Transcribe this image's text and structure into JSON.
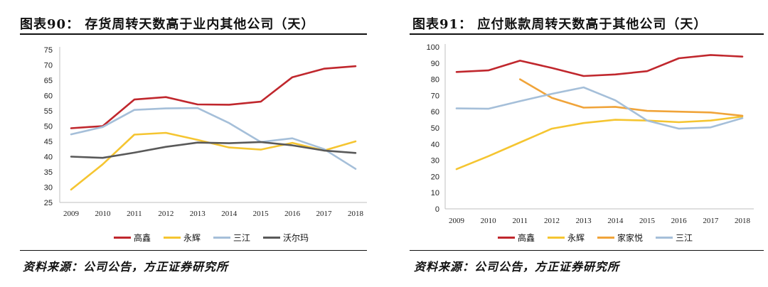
{
  "chart_data": [
    {
      "type": "line",
      "title": "图表90：  存货周转天数高于业内其他公司（天）",
      "categories": [
        "2009",
        "2010",
        "2011",
        "2012",
        "2013",
        "2014",
        "2015",
        "2016",
        "2017",
        "2018"
      ],
      "ylim": [
        25,
        75
      ],
      "yticks": [
        25,
        30,
        35,
        40,
        45,
        50,
        55,
        60,
        65,
        70,
        75
      ],
      "series": [
        {
          "name": "高鑫",
          "color": "#c0272d",
          "values": [
            49.3,
            50.0,
            58.7,
            59.5,
            57.1,
            57.0,
            58.0,
            66.0,
            68.8,
            69.6
          ]
        },
        {
          "name": "永辉",
          "color": "#f5c531",
          "values": [
            29.2,
            37.5,
            47.2,
            47.8,
            45.5,
            43.0,
            42.3,
            44.5,
            42.0,
            45.0
          ]
        },
        {
          "name": "三江",
          "color": "#a5bfd9",
          "values": [
            47.3,
            49.7,
            55.3,
            55.8,
            55.9,
            51.0,
            44.8,
            46.0,
            42.5,
            36.0
          ]
        },
        {
          "name": "沃尔玛",
          "color": "#595959",
          "values": [
            40.0,
            39.6,
            41.3,
            43.2,
            44.6,
            44.4,
            44.8,
            43.7,
            42.0,
            41.2
          ]
        }
      ],
      "source": "资料来源：公司公告，方正证券研究所"
    },
    {
      "type": "line",
      "title": "图表91：  应付账款周转天数高于其他公司（天）",
      "categories": [
        "2009",
        "2010",
        "2011",
        "2012",
        "2013",
        "2014",
        "2015",
        "2016",
        "2017",
        "2018"
      ],
      "ylim": [
        0,
        100
      ],
      "yticks": [
        0,
        10,
        20,
        30,
        40,
        50,
        60,
        70,
        80,
        90,
        100
      ],
      "series": [
        {
          "name": "高鑫",
          "color": "#c0272d",
          "values": [
            84.5,
            85.5,
            91.5,
            87.0,
            82.0,
            83.0,
            85.0,
            93.0,
            95.0,
            94.0
          ]
        },
        {
          "name": "永辉",
          "color": "#f5c531",
          "values": [
            24.5,
            32.5,
            41.0,
            49.5,
            53.0,
            55.0,
            54.5,
            53.5,
            54.5,
            57.0
          ]
        },
        {
          "name": "家家悦",
          "color": "#f0a43a",
          "values": [
            null,
            null,
            80.0,
            68.5,
            62.5,
            63.0,
            60.5,
            60.0,
            59.5,
            57.5
          ]
        },
        {
          "name": "三江",
          "color": "#a5bfd9",
          "values": [
            62.0,
            61.8,
            66.5,
            71.0,
            75.0,
            67.0,
            54.5,
            49.5,
            50.3,
            56.0
          ]
        }
      ],
      "source": "资料来源：公司公告，方正证券研究所"
    }
  ]
}
